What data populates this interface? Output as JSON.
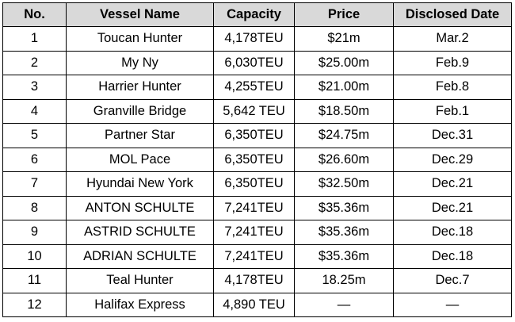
{
  "table": {
    "headers": [
      "No.",
      "Vessel Name",
      "Capacity",
      "Price",
      "Disclosed Date"
    ],
    "rows": [
      [
        "1",
        "Toucan Hunter",
        "4,178TEU",
        "$21m",
        "Mar.2"
      ],
      [
        "2",
        "My Ny",
        "6,030TEU",
        "$25.00m",
        "Feb.9"
      ],
      [
        "3",
        "Harrier Hunter",
        "4,255TEU",
        "$21.00m",
        "Feb.8"
      ],
      [
        "4",
        "Granville Bridge",
        "5,642 TEU",
        "$18.50m",
        "Feb.1"
      ],
      [
        "5",
        "Partner Star",
        "6,350TEU",
        "$24.75m",
        "Dec.31"
      ],
      [
        "6",
        "MOL Pace",
        "6,350TEU",
        "$26.60m",
        "Dec.29"
      ],
      [
        "7",
        "Hyundai New York",
        "6,350TEU",
        "$32.50m",
        "Dec.21"
      ],
      [
        "8",
        "ANTON SCHULTE",
        "7,241TEU",
        "$35.36m",
        "Dec.21"
      ],
      [
        "9",
        "ASTRID SCHULTE",
        "7,241TEU",
        "$35.36m",
        "Dec.18"
      ],
      [
        "10",
        "ADRIAN SCHULTE",
        "7,241TEU",
        "$35.36m",
        "Dec.18"
      ],
      [
        "11",
        "Teal Hunter",
        "4,178TEU",
        "18.25m",
        "Dec.7"
      ],
      [
        "12",
        "Halifax Express",
        "4,890 TEU",
        "—",
        "—"
      ]
    ]
  },
  "colors": {
    "header_background": "#d9d9d9",
    "border": "#000000"
  }
}
